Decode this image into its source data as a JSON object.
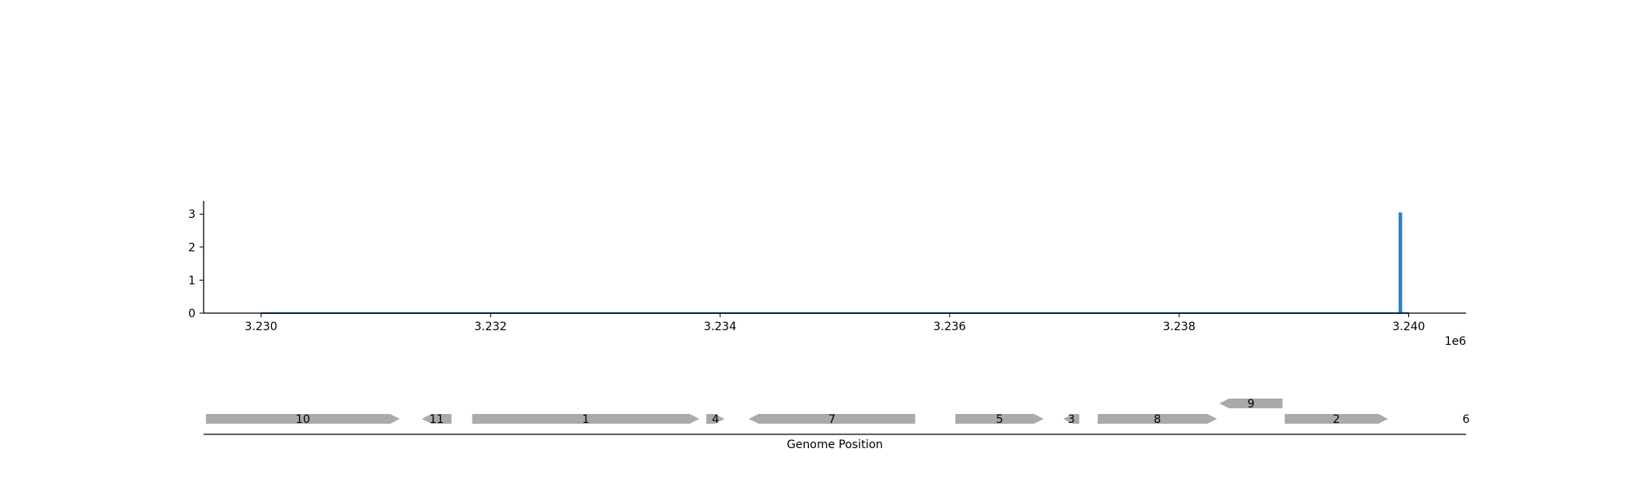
{
  "chart_data": [
    {
      "type": "line",
      "title": "",
      "xlabel": "",
      "ylabel": "",
      "x_offset_label": "1e6",
      "xlim": [
        3229500,
        3240500
      ],
      "ylim": [
        0,
        3.4
      ],
      "xticks": [
        3230000,
        3232000,
        3234000,
        3236000,
        3238000,
        3240000
      ],
      "xtick_labels": [
        "3.230",
        "3.232",
        "3.234",
        "3.236",
        "3.238",
        "3.240"
      ],
      "yticks": [
        0,
        1,
        2,
        3
      ],
      "ytick_labels": [
        "0",
        "1",
        "2",
        "3"
      ],
      "grid": false,
      "line_color": "#1f77b4",
      "series": [
        {
          "x": [
            3230000,
            3239920,
            3239920,
            3239920,
            3239935,
            3239935,
            3239935,
            3240000
          ],
          "y": [
            0,
            0,
            3.05,
            0,
            0,
            3.05,
            0,
            0
          ]
        }
      ]
    },
    {
      "type": "gene-track",
      "xlabel": "Genome Position",
      "xlim": [
        3229500,
        3240500
      ],
      "gene_color": "#aaaaaa",
      "genes": [
        {
          "label": "10",
          "start": 3229520,
          "end": 3231210,
          "strand": "+",
          "row": 0
        },
        {
          "label": "11",
          "start": 3231400,
          "end": 3231660,
          "strand": "-",
          "row": 0
        },
        {
          "label": "1",
          "start": 3231840,
          "end": 3233820,
          "strand": "+",
          "row": 0
        },
        {
          "label": "4",
          "start": 3233880,
          "end": 3234040,
          "strand": "+",
          "row": 0
        },
        {
          "label": "7",
          "start": 3234250,
          "end": 3235700,
          "strand": "-",
          "row": 0
        },
        {
          "label": "5",
          "start": 3236050,
          "end": 3236820,
          "strand": "+",
          "row": 0
        },
        {
          "label": "3",
          "start": 3236990,
          "end": 3237130,
          "strand": "-",
          "row": 0
        },
        {
          "label": "8",
          "start": 3237290,
          "end": 3238330,
          "strand": "+",
          "row": 0
        },
        {
          "label": "9",
          "start": 3238350,
          "end": 3238900,
          "strand": "-",
          "row": 1
        },
        {
          "label": "2",
          "start": 3238920,
          "end": 3239820,
          "strand": "+",
          "row": 0
        },
        {
          "label": "6",
          "start": 3240500,
          "end": 3240500,
          "strand": "+",
          "row": 0
        }
      ]
    }
  ]
}
